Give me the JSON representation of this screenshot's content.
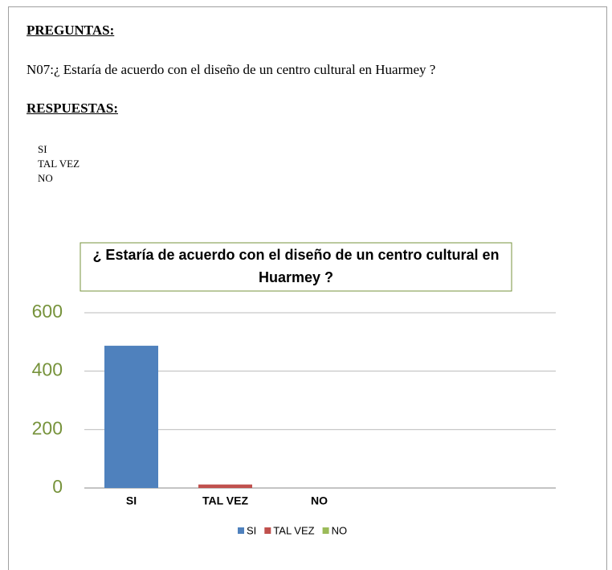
{
  "preguntas": "PREGUNTAS:",
  "pregunta": "N07:¿ Estaría de acuerdo con el diseño de un centro cultural en Huarmey ?",
  "respuestas": "RESPUESTAS:",
  "opciones": [
    "SI",
    "TAL VEZ",
    "NO"
  ],
  "chart_data": {
    "type": "bar",
    "title": "¿ Estaría de acuerdo con el diseño de un centro cultural en Huarmey ?",
    "categories": [
      "SI",
      "TAL VEZ",
      "NO"
    ],
    "values": [
      487,
      12,
      0
    ],
    "colors": [
      "#4f81bd",
      "#c0504d",
      "#9bbb59"
    ],
    "ylim": [
      0,
      600
    ],
    "yticks": [
      0,
      200,
      400,
      600
    ],
    "grid": true,
    "legend": "bottom"
  }
}
